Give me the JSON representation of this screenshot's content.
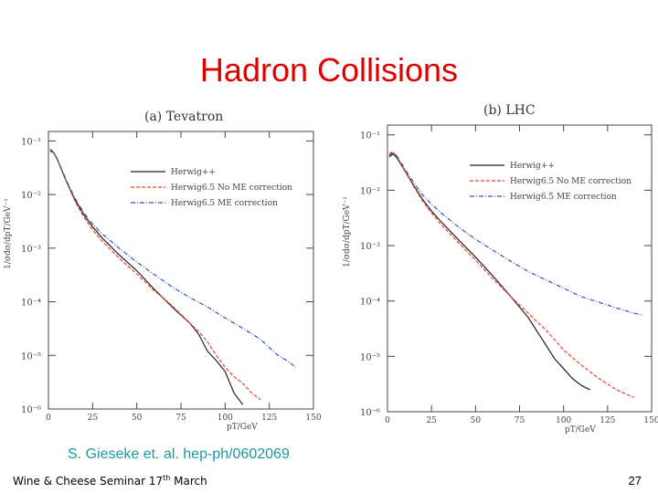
{
  "slide": {
    "title": "Hadron Collisions",
    "citation": "S. Gieseke et. al. hep-ph/0602069",
    "footer": {
      "text": "Wine & Cheese Seminar 17",
      "sup": "th",
      "month": "March"
    },
    "page_number": "27"
  },
  "chart_data": [
    {
      "type": "line",
      "title": "(a) Tevatron",
      "xlabel": "pT/GeV",
      "ylabel": "1/σdσ/dpT/GeV⁻¹",
      "xlim": [
        0,
        150
      ],
      "ylim": [
        1e-06,
        0.15
      ],
      "ylog": true,
      "xticks": [
        0,
        25,
        50,
        75,
        100,
        125,
        150
      ],
      "yticks": [
        {
          "v": 0.1,
          "label": "10⁻¹"
        },
        {
          "v": 0.01,
          "label": "10⁻²"
        },
        {
          "v": 0.001,
          "label": "10⁻³"
        },
        {
          "v": 0.0001,
          "label": "10⁻⁴"
        },
        {
          "v": 1e-05,
          "label": "10⁻⁵"
        },
        {
          "v": 1e-06,
          "label": "10⁻⁶"
        }
      ],
      "legend_position": "upper-right",
      "series": [
        {
          "name": "Herwig++",
          "color": "#222222",
          "style": "solid",
          "x": [
            1,
            3,
            5,
            10,
            15,
            20,
            25,
            30,
            40,
            50,
            60,
            70,
            80,
            85,
            90,
            95,
            100,
            105,
            110
          ],
          "y": [
            0.065,
            0.06,
            0.045,
            0.018,
            0.008,
            0.0042,
            0.0025,
            0.0016,
            0.00075,
            0.00038,
            0.00017,
            8e-05,
            4e-05,
            2.5e-05,
            1.2e-05,
            8e-06,
            5e-06,
            2e-06,
            1.2e-06
          ]
        },
        {
          "name": "Herwig6.5 No ME correction",
          "color": "#e8452c",
          "style": "dashed",
          "x": [
            1,
            3,
            5,
            10,
            15,
            20,
            25,
            30,
            40,
            50,
            60,
            70,
            80,
            85,
            90,
            95,
            100,
            105,
            110,
            115,
            120
          ],
          "y": [
            0.07,
            0.062,
            0.046,
            0.018,
            0.0075,
            0.0038,
            0.0022,
            0.0014,
            0.00065,
            0.00033,
            0.00016,
            8.5e-05,
            4e-05,
            2.8e-05,
            1.8e-05,
            1e-05,
            6e-06,
            4e-06,
            3e-06,
            2e-06,
            1.5e-06
          ]
        },
        {
          "name": "Herwig6.5 ME correction",
          "color": "#3355bb",
          "style": "dashdot",
          "x": [
            1,
            3,
            5,
            10,
            15,
            20,
            25,
            30,
            40,
            50,
            60,
            70,
            80,
            90,
            100,
            110,
            120,
            125,
            130,
            135,
            140
          ],
          "y": [
            0.068,
            0.06,
            0.046,
            0.019,
            0.0085,
            0.0046,
            0.0028,
            0.0019,
            0.001,
            0.00055,
            0.00032,
            0.00019,
            0.00012,
            8e-05,
            5e-05,
            3.2e-05,
            2e-05,
            1.4e-05,
            1e-05,
            8e-06,
            6e-06
          ]
        }
      ]
    },
    {
      "type": "line",
      "title": "(b) LHC",
      "xlabel": "pT/GeV",
      "ylabel": "1/σdσ/dpT/GeV⁻¹",
      "xlim": [
        0,
        150
      ],
      "ylim": [
        1e-06,
        0.15
      ],
      "ylog": true,
      "xticks": [
        0,
        25,
        50,
        75,
        100,
        125,
        150
      ],
      "yticks": [
        {
          "v": 0.1,
          "label": "10⁻¹"
        },
        {
          "v": 0.01,
          "label": "10⁻²"
        },
        {
          "v": 0.001,
          "label": "10⁻³"
        },
        {
          "v": 0.0001,
          "label": "10⁻⁴"
        },
        {
          "v": 1e-05,
          "label": "10⁻⁵"
        },
        {
          "v": 1e-06,
          "label": "10⁻⁶"
        }
      ],
      "legend_position": "upper-right",
      "series": [
        {
          "name": "Herwig++",
          "color": "#222222",
          "style": "solid",
          "x": [
            1,
            3,
            5,
            10,
            15,
            20,
            25,
            30,
            40,
            50,
            60,
            70,
            80,
            85,
            90,
            95,
            100,
            105,
            110,
            115
          ],
          "y": [
            0.04,
            0.045,
            0.04,
            0.022,
            0.012,
            0.0068,
            0.0042,
            0.0028,
            0.0013,
            0.00062,
            0.00028,
            0.00012,
            5e-05,
            2.8e-05,
            1.6e-05,
            9e-06,
            6e-06,
            4e-06,
            3e-06,
            2.5e-06
          ]
        },
        {
          "name": "Herwig6.5 No ME correction",
          "color": "#e8452c",
          "style": "dashed",
          "x": [
            1,
            3,
            5,
            10,
            15,
            20,
            25,
            30,
            40,
            50,
            60,
            70,
            80,
            85,
            90,
            95,
            100,
            110,
            120,
            130,
            140
          ],
          "y": [
            0.045,
            0.05,
            0.042,
            0.022,
            0.0115,
            0.0064,
            0.0039,
            0.0025,
            0.00115,
            0.00055,
            0.00025,
            0.00012,
            6e-05,
            4.2e-05,
            3e-05,
            2e-05,
            1.3e-05,
            7e-06,
            4e-06,
            2.5e-06,
            1.8e-06
          ]
        },
        {
          "name": "Herwig6.5 ME correction",
          "color": "#3355bb",
          "style": "dashdot",
          "x": [
            1,
            3,
            5,
            10,
            15,
            20,
            25,
            30,
            40,
            50,
            60,
            70,
            80,
            90,
            100,
            110,
            120,
            130,
            140,
            145
          ],
          "y": [
            0.042,
            0.048,
            0.043,
            0.024,
            0.0135,
            0.0082,
            0.0056,
            0.004,
            0.0022,
            0.0013,
            0.00082,
            0.00052,
            0.00034,
            0.00024,
            0.00017,
            0.00012,
            9.5e-05,
            7.5e-05,
            6e-05,
            5.5e-05
          ]
        }
      ]
    }
  ]
}
